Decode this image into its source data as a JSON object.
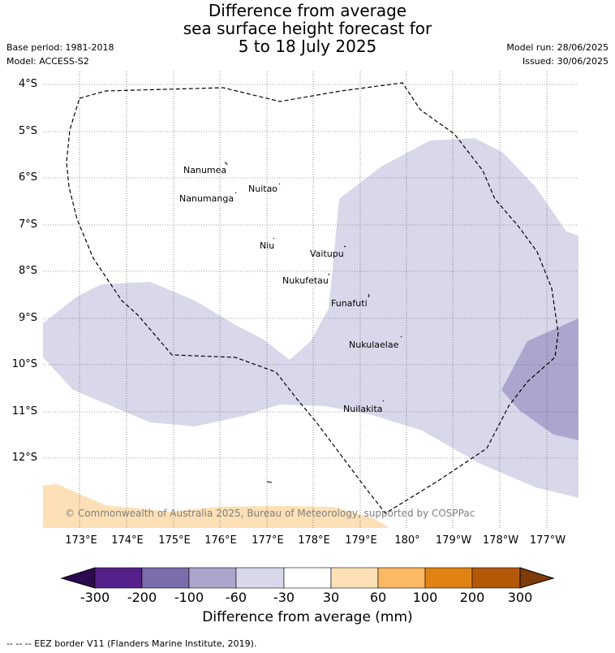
{
  "title": {
    "line1": "Difference from average",
    "line2": "sea surface height forecast for",
    "line3": "5 to 18 July 2025"
  },
  "meta": {
    "base_period": "Base period: 1981-2018",
    "model": "Model: ACCESS-S2",
    "model_run": "Model run: 28/06/2025",
    "issued": "Issued: 30/06/2025"
  },
  "lat_labels": [
    "4°S",
    "5°S",
    "6°S",
    "7°S",
    "8°S",
    "9°S",
    "10°S",
    "11°S",
    "12°S"
  ],
  "lon_labels": [
    "173°E",
    "174°E",
    "175°E",
    "176°E",
    "177°E",
    "178°E",
    "179°E",
    "180°",
    "179°W",
    "178°W",
    "177°W"
  ],
  "places": [
    {
      "name": "Nanumea"
    },
    {
      "name": "Nuitao"
    },
    {
      "name": "Nanumanga"
    },
    {
      "name": "Niu"
    },
    {
      "name": "Vaitupu"
    },
    {
      "name": "Nukufetau"
    },
    {
      "name": "Funafuti"
    },
    {
      "name": "Nukulaelae"
    },
    {
      "name": "Nuilakita"
    }
  ],
  "copyright": "© Commonwealth of Australia 2025, Bureau of Meteorology, supported by COSPPac",
  "colorbar": {
    "ticks": [
      "-300",
      "-200",
      "-100",
      "-60",
      "-30",
      "30",
      "60",
      "100",
      "200",
      "300"
    ],
    "colors": [
      "#2d0a4e",
      "#56208a",
      "#7b6cab",
      "#aca6ce",
      "#d8d8ea",
      "#ffffff",
      "#fde0b6",
      "#fdb863",
      "#e08214",
      "#b35806",
      "#7f3b08"
    ],
    "label": "Difference from average (mm)"
  },
  "footer": "-- -- -- EEZ border V11 (Flanders Marine Institute, 2019)."
}
